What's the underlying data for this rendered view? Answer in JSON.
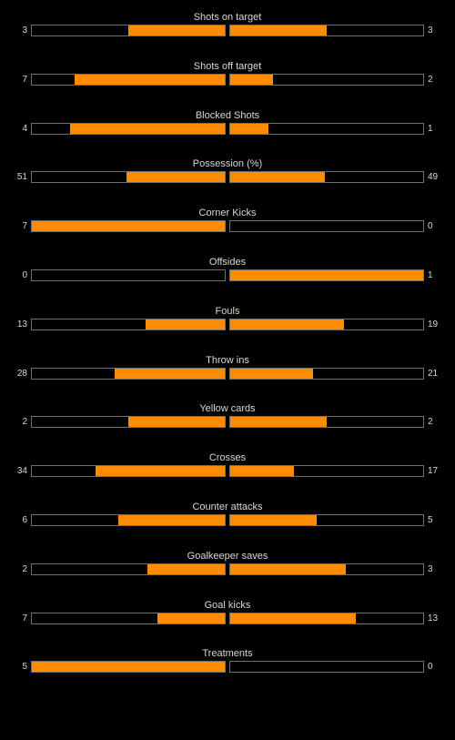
{
  "colors": {
    "background": "#000000",
    "bar_fill": "#ff8c00",
    "bar_border": "#6f6f6f",
    "text": "#d8d8d8"
  },
  "stats": [
    {
      "label": "Shots on target",
      "home": "3",
      "away": "3",
      "home_share": 0.5,
      "away_share": 0.5
    },
    {
      "label": "Shots off target",
      "home": "7",
      "away": "2",
      "home_share": 0.78,
      "away_share": 0.22
    },
    {
      "label": "Blocked Shots",
      "home": "4",
      "away": "1",
      "home_share": 0.8,
      "away_share": 0.2
    },
    {
      "label": "Possession (%)",
      "home": "51",
      "away": "49",
      "home_share": 0.51,
      "away_share": 0.49
    },
    {
      "label": "Corner Kicks",
      "home": "7",
      "away": "0",
      "home_share": 1.0,
      "away_share": 0.0
    },
    {
      "label": "Offsides",
      "home": "0",
      "away": "1",
      "home_share": 0.0,
      "away_share": 1.0
    },
    {
      "label": "Fouls",
      "home": "13",
      "away": "19",
      "home_share": 0.41,
      "away_share": 0.59
    },
    {
      "label": "Throw ins",
      "home": "28",
      "away": "21",
      "home_share": 0.57,
      "away_share": 0.43
    },
    {
      "label": "Yellow cards",
      "home": "2",
      "away": "2",
      "home_share": 0.5,
      "away_share": 0.5
    },
    {
      "label": "Crosses",
      "home": "34",
      "away": "17",
      "home_share": 0.67,
      "away_share": 0.33
    },
    {
      "label": "Counter attacks",
      "home": "6",
      "away": "5",
      "home_share": 0.55,
      "away_share": 0.45
    },
    {
      "label": "Goalkeeper saves",
      "home": "2",
      "away": "3",
      "home_share": 0.4,
      "away_share": 0.6
    },
    {
      "label": "Goal kicks",
      "home": "7",
      "away": "13",
      "home_share": 0.35,
      "away_share": 0.65
    },
    {
      "label": "Treatments",
      "home": "5",
      "away": "0",
      "home_share": 1.0,
      "away_share": 0.0
    }
  ]
}
